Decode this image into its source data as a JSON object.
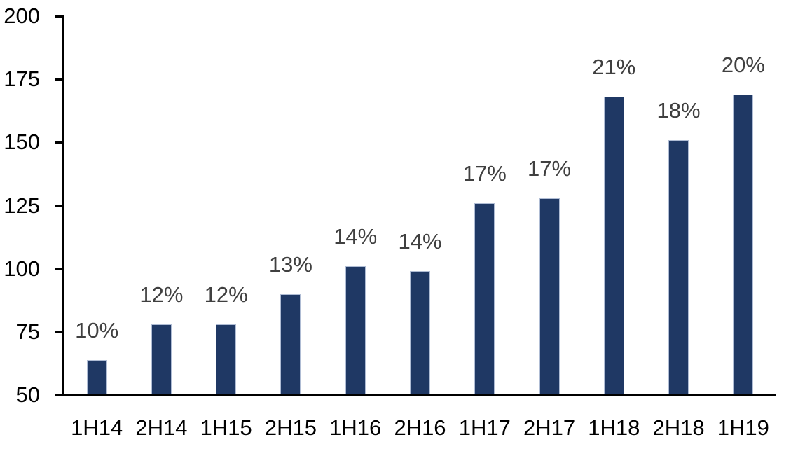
{
  "chart_data": {
    "type": "bar",
    "title": "",
    "xlabel": "",
    "ylabel": "",
    "categories": [
      "1H14",
      "2H14",
      "1H15",
      "2H15",
      "1H16",
      "2H16",
      "1H17",
      "2H17",
      "1H18",
      "2H18",
      "1H19"
    ],
    "values": [
      64,
      78,
      78,
      90,
      101,
      99,
      126,
      128,
      168,
      151,
      169
    ],
    "bar_labels": [
      "10%",
      "12%",
      "12%",
      "13%",
      "14%",
      "14%",
      "17%",
      "17%",
      "21%",
      "18%",
      "20%"
    ],
    "ylim": [
      50,
      200
    ],
    "yticks": [
      50,
      75,
      100,
      125,
      150,
      175,
      200
    ],
    "grid": false,
    "legend": false,
    "colors": {
      "bar_fill": "#1F3864",
      "bar_border": "#AFBCD4",
      "data_label": "#404040",
      "axis": "#000000",
      "tick_label": "#000000",
      "background": "#FFFFFF"
    }
  }
}
